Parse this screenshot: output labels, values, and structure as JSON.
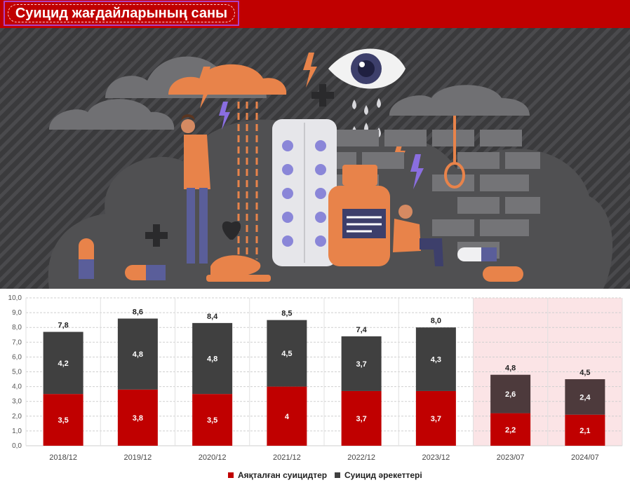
{
  "title": "Суицид жағдайларының саны",
  "colors": {
    "header": "#c00000",
    "completed": "#c00000",
    "attempts": "#404040",
    "attempts_highlight": "#4d3a3c",
    "highlight_bg": "#fbe4e6"
  },
  "chart_data": {
    "type": "bar",
    "stacked": true,
    "categories": [
      "2018/12",
      "2019/12",
      "2020/12",
      "2021/12",
      "2022/12",
      "2023/12",
      "2023/07",
      "2024/07"
    ],
    "series": [
      {
        "name": "Аяқталған суицидтер",
        "values": [
          3.5,
          3.8,
          3.5,
          4,
          3.7,
          3.7,
          2.2,
          2.1
        ]
      },
      {
        "name": "Суицид әрекеттері",
        "values": [
          4.2,
          4.8,
          4.8,
          4.5,
          3.7,
          4.3,
          2.6,
          2.4
        ]
      }
    ],
    "value_labels": {
      "completed": [
        "3,5",
        "3,8",
        "3,5",
        "4",
        "3,7",
        "3,7",
        "2,2",
        "2,1"
      ],
      "attempts": [
        "4,2",
        "4,8",
        "4,8",
        "4,5",
        "3,7",
        "4,3",
        "2,6",
        "2,4"
      ],
      "totals": [
        "7,8",
        "8,6",
        "8,4",
        "8,5",
        "7,4",
        "8,0",
        "4,8",
        "4,5"
      ]
    },
    "highlighted_categories": [
      "2023/07",
      "2024/07"
    ],
    "y_ticks": [
      "0,0",
      "1,0",
      "2,0",
      "3,0",
      "4,0",
      "5,0",
      "6,0",
      "7,0",
      "8,0",
      "9,0",
      "10,0"
    ],
    "ylim": [
      0,
      10
    ],
    "grid": true,
    "legend_position": "bottom"
  }
}
